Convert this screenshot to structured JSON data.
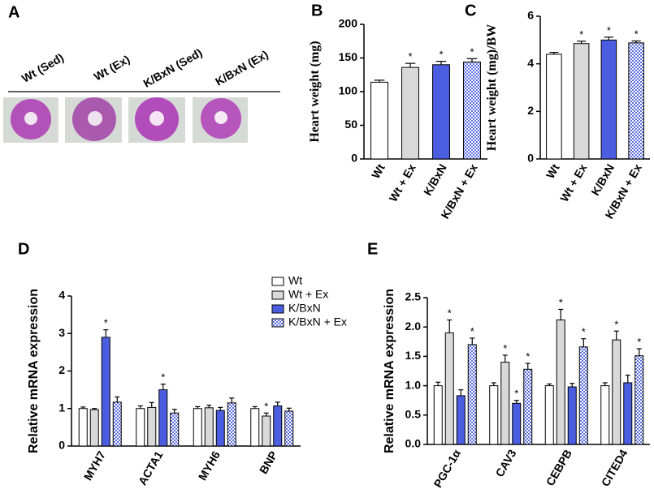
{
  "panel_a": {
    "label": "A",
    "samples": [
      "Wt (Sed)",
      "Wt (Ex)",
      "K/BxN (Sed)",
      "K/BxN (Ex)"
    ]
  },
  "chart_data": [
    {
      "type": "bar",
      "panel": "B",
      "y_label": "Heart weight (mg)",
      "categories": [
        "Wt",
        "Wt + Ex",
        "K/BxN",
        "K/BxN + Ex"
      ],
      "values": [
        114,
        136,
        140,
        144
      ],
      "errors": [
        3,
        6,
        5,
        5
      ],
      "markers": [
        null,
        "*",
        "*",
        "*"
      ],
      "colors": [
        "#ffffff",
        "#d9d9d9",
        "#4b5de0",
        "#5b6ee1"
      ],
      "patterns": [
        "solid",
        "solid",
        "solid",
        "checker"
      ],
      "ylim": [
        0,
        200
      ],
      "yticks": [
        0,
        50,
        100,
        150,
        200
      ]
    },
    {
      "type": "bar",
      "panel": "C",
      "y_label": "Heart weight (mg)/BW",
      "categories": [
        "Wt",
        "Wt + Ex",
        "K/BxN",
        "K/BxN + Ex"
      ],
      "values": [
        4.4,
        4.85,
        5.0,
        4.88
      ],
      "errors": [
        0.08,
        0.1,
        0.12,
        0.08
      ],
      "markers": [
        null,
        "*",
        "*",
        "*"
      ],
      "colors": [
        "#ffffff",
        "#d9d9d9",
        "#4b5de0",
        "#5b6ee1"
      ],
      "patterns": [
        "solid",
        "solid",
        "solid",
        "checker"
      ],
      "ylim": [
        0,
        6
      ],
      "yticks": [
        0,
        2,
        4,
        6
      ]
    },
    {
      "type": "grouped_bar",
      "panel": "D",
      "y_label": "Relative mRNA expression",
      "legend": "top-right",
      "categories": [
        "MYH7",
        "ACTA1",
        "MYH6",
        "BNP"
      ],
      "series": [
        {
          "name": "Wt",
          "color": "#ffffff",
          "pattern": "solid",
          "values": [
            1.0,
            1.0,
            1.0,
            1.0
          ],
          "errors": [
            0.04,
            0.07,
            0.05,
            0.05
          ],
          "markers": [
            null,
            null,
            null,
            null
          ]
        },
        {
          "name": "Wt + Ex",
          "color": "#d9d9d9",
          "pattern": "solid",
          "values": [
            0.97,
            1.03,
            1.02,
            0.8
          ],
          "errors": [
            0.03,
            0.13,
            0.07,
            0.08
          ],
          "markers": [
            null,
            null,
            null,
            "*"
          ]
        },
        {
          "name": "K/BxN",
          "color": "#4b5de0",
          "pattern": "solid",
          "values": [
            2.9,
            1.5,
            0.95,
            1.07
          ],
          "errors": [
            0.2,
            0.15,
            0.08,
            0.1
          ],
          "markers": [
            "*",
            "*",
            null,
            null
          ]
        },
        {
          "name": "K/BxN + Ex",
          "color": "#5b6ee1",
          "pattern": "checker",
          "values": [
            1.17,
            0.88,
            1.15,
            0.93
          ],
          "errors": [
            0.14,
            0.1,
            0.13,
            0.08
          ],
          "markers": [
            null,
            null,
            null,
            null
          ]
        }
      ],
      "ylim": [
        0,
        4
      ],
      "yticks": [
        0,
        1,
        2,
        3,
        4
      ]
    },
    {
      "type": "grouped_bar",
      "panel": "E",
      "y_label": "Relative mRNA expression",
      "categories": [
        "PGC-1α",
        "CAV3",
        "CEBPB",
        "CITED4"
      ],
      "series": [
        {
          "color": "#ffffff",
          "pattern": "solid",
          "values": [
            1.0,
            1.0,
            1.0,
            1.0
          ],
          "errors": [
            0.06,
            0.05,
            0.03,
            0.05
          ],
          "markers": [
            null,
            null,
            null,
            null
          ]
        },
        {
          "color": "#d9d9d9",
          "pattern": "solid",
          "values": [
            1.9,
            1.4,
            2.12,
            1.78
          ],
          "errors": [
            0.22,
            0.12,
            0.18,
            0.15
          ],
          "markers": [
            "*",
            "*",
            "*",
            "*"
          ]
        },
        {
          "color": "#4b5de0",
          "pattern": "solid",
          "values": [
            0.83,
            0.7,
            0.98,
            1.05
          ],
          "errors": [
            0.1,
            0.05,
            0.06,
            0.13
          ],
          "markers": [
            null,
            "*",
            null,
            null
          ]
        },
        {
          "color": "#5b6ee1",
          "pattern": "checker",
          "values": [
            1.7,
            1.28,
            1.66,
            1.51
          ],
          "errors": [
            0.11,
            0.1,
            0.14,
            0.12
          ],
          "markers": [
            "*",
            "*",
            "*",
            "*"
          ]
        }
      ],
      "ylim": [
        0,
        2.5
      ],
      "yticks": [
        {
          "value": 0,
          "label": "0.0"
        },
        0.5,
        {
          "value": 1,
          "label": "1.0"
        },
        1.5,
        {
          "value": 2,
          "label": "2.0"
        },
        2.5
      ]
    }
  ]
}
